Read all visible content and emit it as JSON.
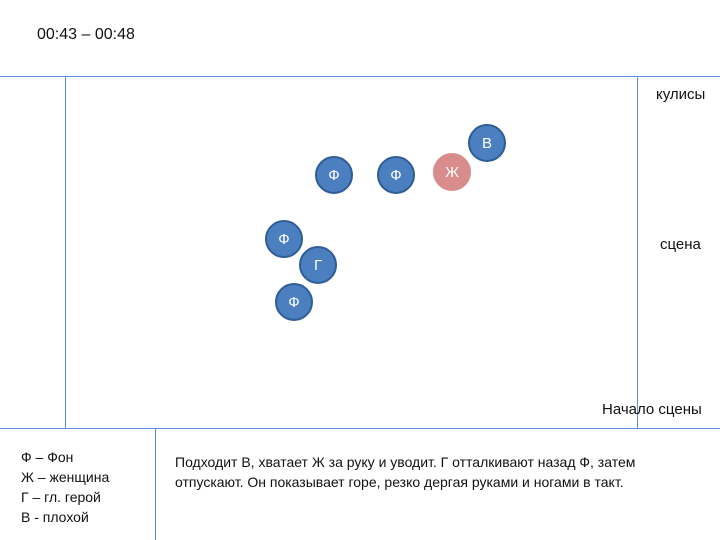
{
  "time_range": "00:43 – 00:48",
  "labels": {
    "wings": "кулисы",
    "stage": "сцена",
    "stage_front": "Начало сцены"
  },
  "figures": [
    {
      "letter": "В",
      "color": "#4b7fbf"
    },
    {
      "letter": "Ф",
      "color": "#4b7fbf"
    },
    {
      "letter": "Ф",
      "color": "#4b7fbf"
    },
    {
      "letter": "Ж",
      "color": "#d98c8c"
    },
    {
      "letter": "Ф",
      "color": "#4b7fbf"
    },
    {
      "letter": "Г",
      "color": "#4b7fbf"
    },
    {
      "letter": "Ф",
      "color": "#4b7fbf"
    }
  ],
  "legend": [
    "Ф – Фон",
    "Ж – женщина",
    "Г – гл. герой",
    "В - плохой"
  ],
  "description": "Подходит В, хватает Ж за руку и уводит. Г отталкивают назад Ф, затем отпускают. Он показывает горе, резко дергая руками и ногами в такт."
}
